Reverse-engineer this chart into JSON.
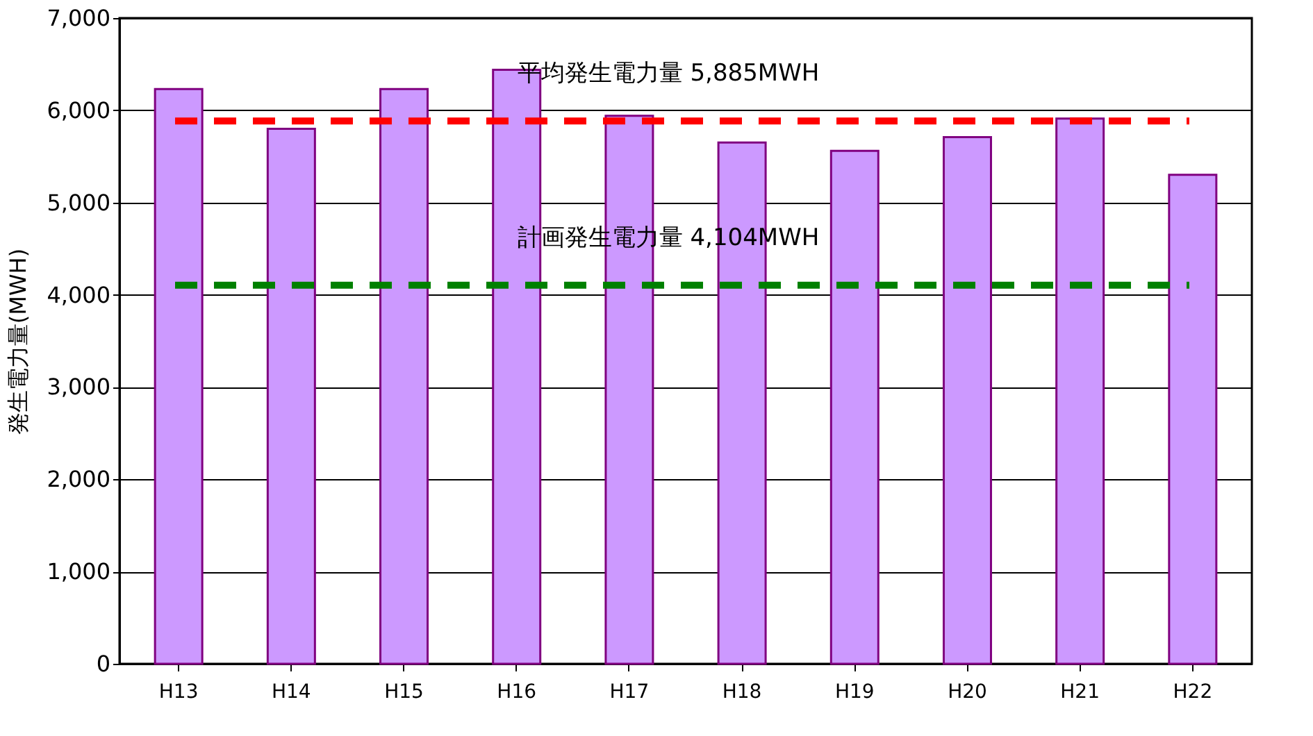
{
  "chart_data": {
    "type": "bar",
    "ylabel": "発生電力量(MWH)",
    "categories": [
      "H13",
      "H14",
      "H15",
      "H16",
      "H17",
      "H18",
      "H19",
      "H20",
      "H21",
      "H22"
    ],
    "values": [
      6230,
      5800,
      6230,
      6440,
      5940,
      5650,
      5560,
      5710,
      5910,
      5300
    ],
    "color": "#cc99ff",
    "ylim": [
      0,
      7000
    ],
    "yticks": [
      0,
      {
        "value": 1000,
        "label": "1,000"
      },
      {
        "value": 2000,
        "label": "2,000"
      },
      {
        "value": 3000,
        "label": "3,000"
      },
      {
        "value": 4000,
        "label": "4,000"
      },
      {
        "value": 5000,
        "label": "5,000"
      },
      {
        "value": 6000,
        "label": "6,000"
      },
      {
        "value": 7000,
        "label": "7,000"
      }
    ],
    "grid": "y",
    "ref_lines": [
      {
        "axis": "y",
        "value": 5885,
        "label": "平均発生電力量  5,885MWH",
        "color": "#ff0000",
        "line_style": "dashed"
      },
      {
        "axis": "y",
        "value": 4104,
        "label": "計画発生電力量  4,104MWH",
        "color": "#008000",
        "line_style": "dashed"
      }
    ]
  }
}
